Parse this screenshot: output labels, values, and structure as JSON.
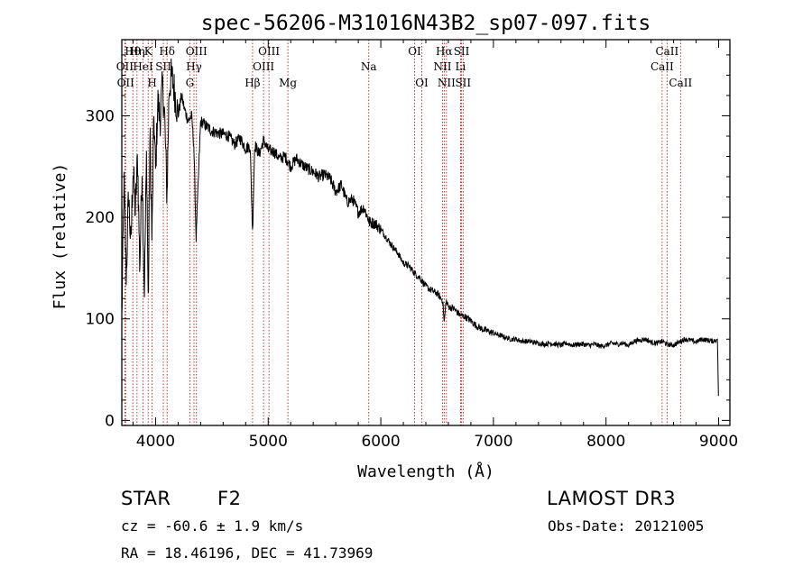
{
  "chart_data": {
    "type": "line",
    "title": "spec-56206-M31016N43B2_sp07-097.fits",
    "xlabel": "Wavelength (Å)",
    "ylabel": "Flux (relative)",
    "xlim": [
      3700,
      9100
    ],
    "ylim": [
      -5,
      375
    ],
    "xticks": [
      4000,
      5000,
      6000,
      7000,
      8000,
      9000
    ],
    "yticks": [
      0,
      100,
      200,
      300
    ],
    "series": [
      {
        "name": "flux",
        "x": [
          3700,
          3720,
          3740,
          3760,
          3780,
          3800,
          3820,
          3840,
          3860,
          3880,
          3900,
          3920,
          3935,
          3950,
          3968,
          3985,
          4000,
          4020,
          4040,
          4060,
          4080,
          4101,
          4120,
          4140,
          4160,
          4180,
          4200,
          4230,
          4260,
          4290,
          4320,
          4340,
          4360,
          4400,
          4450,
          4500,
          4550,
          4600,
          4650,
          4700,
          4750,
          4800,
          4840,
          4861,
          4880,
          4920,
          4960,
          5000,
          5050,
          5100,
          5150,
          5200,
          5250,
          5300,
          5350,
          5400,
          5450,
          5500,
          5550,
          5600,
          5650,
          5700,
          5750,
          5800,
          5850,
          5900,
          5950,
          6000,
          6050,
          6100,
          6150,
          6200,
          6250,
          6300,
          6350,
          6400,
          6450,
          6500,
          6550,
          6563,
          6580,
          6600,
          6650,
          6700,
          6750,
          6800,
          6850,
          6900,
          6950,
          7000,
          7050,
          7100,
          7150,
          7200,
          7250,
          7300,
          7350,
          7400,
          7450,
          7500,
          7550,
          7600,
          7650,
          7700,
          7750,
          7800,
          7850,
          7900,
          7950,
          8000,
          8050,
          8100,
          8150,
          8200,
          8250,
          8300,
          8350,
          8400,
          8450,
          8500,
          8542,
          8600,
          8662,
          8700,
          8750,
          8800,
          8850,
          8900,
          8950,
          8990,
          9000
        ],
        "y": [
          100,
          235,
          140,
          225,
          170,
          250,
          205,
          260,
          150,
          250,
          125,
          265,
          110,
          285,
          175,
          300,
          245,
          315,
          295,
          330,
          300,
          220,
          325,
          340,
          330,
          315,
          300,
          320,
          305,
          295,
          300,
          270,
          180,
          295,
          290,
          285,
          283,
          282,
          280,
          272,
          278,
          268,
          270,
          185,
          272,
          262,
          276,
          266,
          265,
          258,
          260,
          250,
          258,
          252,
          248,
          245,
          240,
          242,
          238,
          225,
          232,
          215,
          218,
          205,
          210,
          195,
          194,
          188,
          180,
          172,
          165,
          155,
          152,
          145,
          140,
          132,
          128,
          125,
          118,
          96,
          118,
          112,
          110,
          104,
          102,
          98,
          93,
          90,
          88,
          86,
          84,
          82,
          80,
          80,
          78,
          78,
          77,
          76,
          75,
          76,
          75,
          74,
          76,
          74,
          75,
          75,
          74,
          75,
          73,
          74,
          76,
          75,
          76,
          74,
          78,
          79,
          80,
          77,
          76,
          78,
          75,
          74,
          78,
          80,
          79,
          77,
          80,
          79,
          78,
          80,
          10
        ]
      }
    ],
    "lines": [
      {
        "w": 3727,
        "label": "OII",
        "row": 1
      },
      {
        "w": 3734,
        "label": "OII",
        "row": 2
      },
      {
        "w": 3798,
        "label": "Hθ",
        "row": 0
      },
      {
        "w": 3835,
        "label": "Hη",
        "row": 0
      },
      {
        "w": 3889,
        "label": "HeI",
        "row": 1
      },
      {
        "w": 3934,
        "label": "K",
        "row": 0
      },
      {
        "w": 3969,
        "label": "H",
        "row": 2
      },
      {
        "w": 4069,
        "label": "SII",
        "row": 1
      },
      {
        "w": 4102,
        "label": "Hδ",
        "row": 0
      },
      {
        "w": 4304,
        "label": "G",
        "row": 2
      },
      {
        "w": 4341,
        "label": "Hγ",
        "row": 1
      },
      {
        "w": 4363,
        "label": "OIII",
        "row": 0
      },
      {
        "w": 4861,
        "label": "Hβ",
        "row": 2
      },
      {
        "w": 4959,
        "label": "OIII",
        "row": 1
      },
      {
        "w": 5007,
        "label": "OIII",
        "row": 0
      },
      {
        "w": 5175,
        "label": "Mg",
        "row": 2
      },
      {
        "w": 5893,
        "label": "Na",
        "row": 1
      },
      {
        "w": 6300,
        "label": "OI",
        "row": 0
      },
      {
        "w": 6364,
        "label": "OI",
        "row": 2
      },
      {
        "w": 6548,
        "label": "NII",
        "row": 1
      },
      {
        "w": 6563,
        "label": "Hα",
        "row": 0
      },
      {
        "w": 6583,
        "label": "NII",
        "row": 2
      },
      {
        "w": 6708,
        "label": "Li",
        "row": 1
      },
      {
        "w": 6717,
        "label": "SII",
        "row": 0
      },
      {
        "w": 6731,
        "label": "SII",
        "row": 2
      },
      {
        "w": 8498,
        "label": "CaII",
        "row": 1
      },
      {
        "w": 8542,
        "label": "CaII",
        "row": 0
      },
      {
        "w": 8662,
        "label": "CaII",
        "row": 2
      }
    ]
  },
  "info": {
    "object_class": "STAR",
    "subclass": "F2",
    "survey": "LAMOST DR3",
    "redshift": "cz = -60.6 ± 1.9 km/s",
    "obs_date": "Obs-Date: 20121005",
    "coords": "RA =  18.46196, DEC =  41.73969"
  },
  "colors": {
    "line_marker": "#b22222",
    "spectrum": "#000000"
  }
}
